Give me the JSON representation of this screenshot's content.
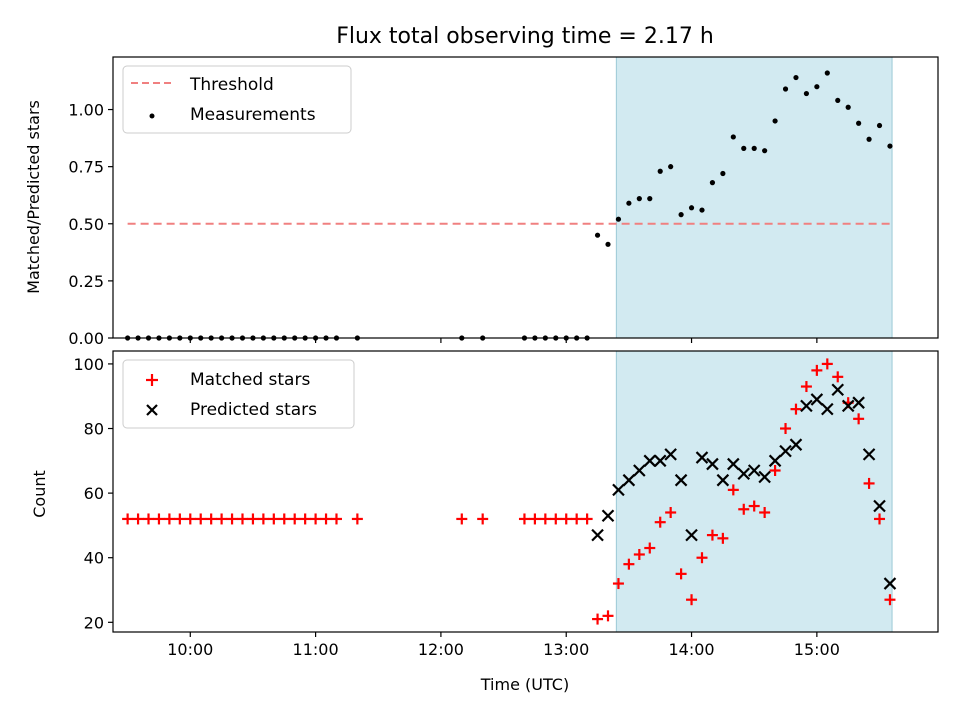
{
  "title": "Flux total observing time = 2.17 h",
  "x_axis_label": "Time (UTC)",
  "colors": {
    "threshold": "#f08080",
    "measurements": "#000000",
    "matched": "#ff0000",
    "predicted": "#000000",
    "highlight": "#add8e6"
  },
  "chart_data": [
    {
      "type": "scatter",
      "ylabel": "Matched/Predicted stars",
      "xlabel": "",
      "xlim": [
        "09:23",
        "15:58"
      ],
      "ylim": [
        0,
        1.23
      ],
      "x_ticks": [
        "10:00",
        "11:00",
        "12:00",
        "13:00",
        "14:00",
        "15:00"
      ],
      "y_ticks": [
        "0.00",
        "0.25",
        "0.50",
        "0.75",
        "1.00"
      ],
      "highlight_span": [
        "13:24",
        "15:36"
      ],
      "legend": {
        "position": "top-left",
        "entries": [
          "Threshold",
          "Measurements"
        ]
      },
      "series": [
        {
          "name": "Threshold",
          "kind": "dashed-line",
          "x": [
            "09:30",
            "15:36"
          ],
          "y": [
            0.5,
            0.5
          ]
        },
        {
          "name": "Measurements",
          "kind": "dot",
          "x": [
            "09:30",
            "09:35",
            "09:40",
            "09:45",
            "09:50",
            "09:55",
            "10:00",
            "10:05",
            "10:10",
            "10:15",
            "10:20",
            "10:25",
            "10:30",
            "10:35",
            "10:40",
            "10:45",
            "10:50",
            "10:55",
            "11:00",
            "11:05",
            "11:10",
            "11:20",
            "12:10",
            "12:20",
            "12:40",
            "12:45",
            "12:50",
            "12:55",
            "13:00",
            "13:05",
            "13:10",
            "13:15",
            "13:20",
            "13:25",
            "13:30",
            "13:35",
            "13:40",
            "13:45",
            "13:50",
            "13:55",
            "14:00",
            "14:05",
            "14:10",
            "14:15",
            "14:20",
            "14:25",
            "14:30",
            "14:35",
            "14:40",
            "14:45",
            "14:50",
            "14:55",
            "15:00",
            "15:05",
            "15:10",
            "15:15",
            "15:20",
            "15:25",
            "15:30",
            "15:35"
          ],
          "y": [
            0,
            0,
            0,
            0,
            0,
            0,
            0,
            0,
            0,
            0,
            0,
            0,
            0,
            0,
            0,
            0,
            0,
            0,
            0,
            0,
            0,
            0,
            0,
            0,
            0,
            0,
            0,
            0,
            0,
            0,
            0,
            0.45,
            0.41,
            0.52,
            0.59,
            0.61,
            0.61,
            0.73,
            0.75,
            0.54,
            0.57,
            0.56,
            0.68,
            0.72,
            0.88,
            0.83,
            0.83,
            0.82,
            0.95,
            1.09,
            1.14,
            1.07,
            1.1,
            1.16,
            1.04,
            1.01,
            0.94,
            0.87,
            0.93,
            0.84
          ]
        }
      ]
    },
    {
      "type": "scatter",
      "ylabel": "Count",
      "xlabel": "Time (UTC)",
      "xlim": [
        "09:23",
        "15:58"
      ],
      "ylim": [
        17,
        104
      ],
      "x_ticks": [
        "10:00",
        "11:00",
        "12:00",
        "13:00",
        "14:00",
        "15:00"
      ],
      "y_ticks": [
        "20",
        "40",
        "60",
        "80",
        "100"
      ],
      "highlight_span": [
        "13:24",
        "15:36"
      ],
      "legend": {
        "position": "top-left",
        "entries": [
          "Matched stars",
          "Predicted stars"
        ]
      },
      "series": [
        {
          "name": "Matched stars",
          "kind": "plus",
          "x": [
            "09:30",
            "09:35",
            "09:40",
            "09:45",
            "09:50",
            "09:55",
            "10:00",
            "10:05",
            "10:10",
            "10:15",
            "10:20",
            "10:25",
            "10:30",
            "10:35",
            "10:40",
            "10:45",
            "10:50",
            "10:55",
            "11:00",
            "11:05",
            "11:10",
            "11:20",
            "12:10",
            "12:20",
            "12:40",
            "12:45",
            "12:50",
            "12:55",
            "13:00",
            "13:05",
            "13:10",
            "13:15",
            "13:20",
            "13:25",
            "13:30",
            "13:35",
            "13:40",
            "13:45",
            "13:50",
            "13:55",
            "14:00",
            "14:05",
            "14:10",
            "14:15",
            "14:20",
            "14:25",
            "14:30",
            "14:35",
            "14:40",
            "14:45",
            "14:50",
            "14:55",
            "15:00",
            "15:05",
            "15:10",
            "15:15",
            "15:20",
            "15:25",
            "15:30",
            "15:35"
          ],
          "y": [
            52,
            52,
            52,
            52,
            52,
            52,
            52,
            52,
            52,
            52,
            52,
            52,
            52,
            52,
            52,
            52,
            52,
            52,
            52,
            52,
            52,
            52,
            52,
            52,
            52,
            52,
            52,
            52,
            52,
            52,
            52,
            21,
            22,
            32,
            38,
            41,
            43,
            51,
            54,
            35,
            27,
            40,
            47,
            46,
            61,
            55,
            56,
            54,
            67,
            80,
            86,
            93,
            98,
            100,
            96,
            88,
            83,
            63,
            52,
            27
          ]
        },
        {
          "name": "Predicted stars",
          "kind": "cross",
          "x": [
            "13:15",
            "13:20",
            "13:25",
            "13:30",
            "13:35",
            "13:40",
            "13:45",
            "13:50",
            "13:55",
            "14:00",
            "14:05",
            "14:10",
            "14:15",
            "14:20",
            "14:25",
            "14:30",
            "14:35",
            "14:40",
            "14:45",
            "14:50",
            "14:55",
            "15:00",
            "15:05",
            "15:10",
            "15:15",
            "15:20",
            "15:25",
            "15:30",
            "15:35"
          ],
          "y": [
            47,
            53,
            61,
            64,
            67,
            70,
            70,
            72,
            64,
            47,
            71,
            69,
            64,
            69,
            66,
            67,
            65,
            70,
            73,
            75,
            87,
            89,
            86,
            92,
            87,
            88,
            72,
            56,
            32
          ]
        }
      ]
    }
  ]
}
